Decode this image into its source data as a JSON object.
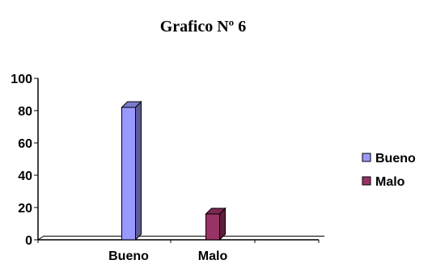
{
  "chart_data": {
    "type": "bar",
    "title": "Grafico Nº 6",
    "categories": [
      "Bueno",
      "Malo"
    ],
    "values": [
      82,
      16
    ],
    "colors": [
      "#9999ff",
      "#993366"
    ],
    "legend": [
      "Bueno",
      "Malo"
    ],
    "legend_position": "right",
    "yticks": [
      0,
      20,
      40,
      60,
      80,
      100
    ],
    "ylim": [
      0,
      100
    ],
    "grid": false,
    "three_d": true
  }
}
